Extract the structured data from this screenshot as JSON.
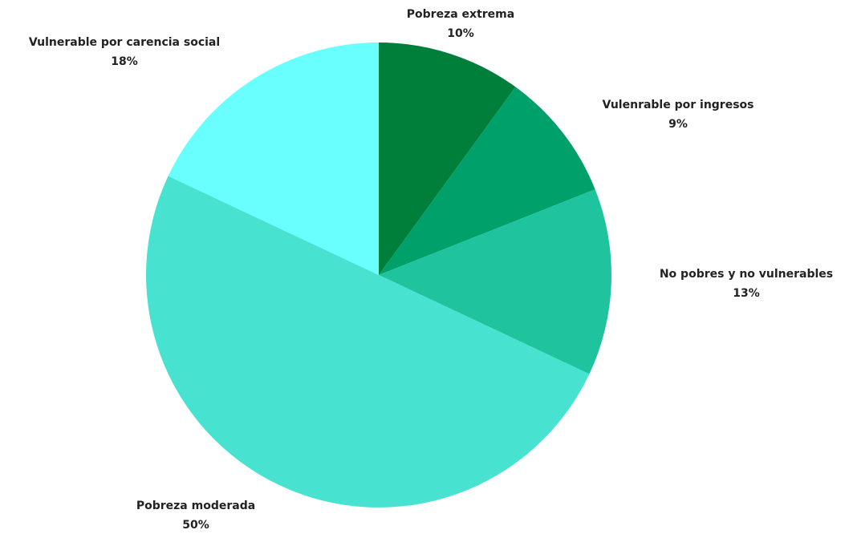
{
  "chart_data": {
    "type": "pie",
    "title": "",
    "slices": [
      {
        "label": "Pobreza extrema",
        "value": 10,
        "value_label": "10%",
        "color": "#007f3a"
      },
      {
        "label": "Vulenrable por ingresos",
        "value": 9,
        "value_label": "9%",
        "color": "#00a06a"
      },
      {
        "label": "No pobres y no vulnerables",
        "value": 13,
        "value_label": "13%",
        "color": "#1fc49f"
      },
      {
        "label": "Pobreza moderada",
        "value": 50,
        "value_label": "50%",
        "color": "#47e2d0"
      },
      {
        "label": "Vulnerable por carencia social",
        "value": 18,
        "value_label": "18%",
        "color": "#6affff"
      }
    ],
    "start_angle": "12 o'clock",
    "direction": "clockwise",
    "legend": "none",
    "labels": "outside"
  }
}
